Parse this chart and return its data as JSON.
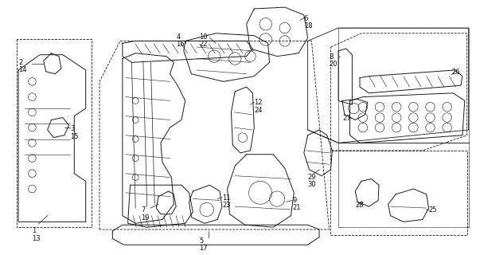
{
  "bg_color": "#ffffff",
  "fig_width": 6.03,
  "fig_height": 3.2,
  "dpi": 100,
  "line_color": "#1a1a1a",
  "label_fontsize": 6.0,
  "leader_lw": 0.5,
  "part_lw": 0.7
}
